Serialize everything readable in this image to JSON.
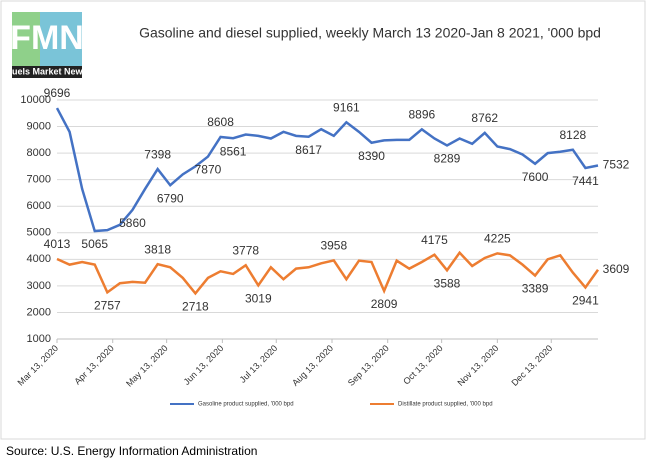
{
  "logo": {
    "mark": "FMN",
    "name": "Fuels Market News"
  },
  "chart_data": {
    "type": "line",
    "title": "Gasoline and diesel supplied, weekly March 13 2020-Jan 8 2021, '000 bpd",
    "x": [
      "2020-03-13",
      "2020-03-20",
      "2020-03-27",
      "2020-04-03",
      "2020-04-10",
      "2020-04-17",
      "2020-04-24",
      "2020-05-01",
      "2020-05-08",
      "2020-05-15",
      "2020-05-22",
      "2020-05-29",
      "2020-06-05",
      "2020-06-12",
      "2020-06-19",
      "2020-06-26",
      "2020-07-03",
      "2020-07-10",
      "2020-07-17",
      "2020-07-24",
      "2020-07-31",
      "2020-08-07",
      "2020-08-14",
      "2020-08-21",
      "2020-08-28",
      "2020-09-04",
      "2020-09-11",
      "2020-09-18",
      "2020-09-25",
      "2020-10-02",
      "2020-10-09",
      "2020-10-16",
      "2020-10-23",
      "2020-10-30",
      "2020-11-06",
      "2020-11-13",
      "2020-11-20",
      "2020-11-27",
      "2020-12-04",
      "2020-12-11",
      "2020-12-18",
      "2020-12-25",
      "2021-01-01",
      "2021-01-08"
    ],
    "series": [
      {
        "name": "Gasoline product supplied, '000 bpd",
        "color": "#4472c4",
        "values": [
          9696,
          8800,
          6650,
          5065,
          5100,
          5300,
          5860,
          6650,
          7398,
          6790,
          7200,
          7500,
          7870,
          8608,
          8561,
          8700,
          8650,
          8550,
          8800,
          8650,
          8617,
          8900,
          8650,
          9161,
          8800,
          8390,
          8480,
          8500,
          8500,
          8896,
          8550,
          8289,
          8550,
          8350,
          8762,
          8250,
          8150,
          7950,
          7600,
          8000,
          8050,
          8128,
          7441,
          7532
        ],
        "label_points": [
          0,
          3,
          6,
          8,
          9,
          12,
          13,
          14,
          20,
          23,
          25,
          29,
          31,
          34,
          38,
          41,
          42,
          43
        ]
      },
      {
        "name": "Distillate product supplied, '000 bpd",
        "color": "#ed7d31",
        "values": [
          4013,
          3800,
          3900,
          3800,
          2757,
          3100,
          3150,
          3120,
          3818,
          3700,
          3300,
          2718,
          3300,
          3550,
          3450,
          3778,
          3019,
          3700,
          3250,
          3650,
          3700,
          3850,
          3958,
          3250,
          3950,
          3900,
          2809,
          3950,
          3650,
          3900,
          4175,
          3588,
          4250,
          3750,
          4050,
          4225,
          4150,
          3800,
          3389,
          4000,
          4150,
          3500,
          2941,
          3609
        ],
        "label_points": [
          0,
          4,
          8,
          11,
          15,
          16,
          22,
          26,
          30,
          31,
          35,
          38,
          42,
          43
        ]
      }
    ],
    "xlim": [
      "2020-03-13",
      "2021-01-08"
    ],
    "xticks": [
      {
        "value": "2020-03-13",
        "label": "Mar 13, 2020"
      },
      {
        "value": "2020-04-13",
        "label": "Apr 13, 2020"
      },
      {
        "value": "2020-05-13",
        "label": "May 13, 2020"
      },
      {
        "value": "2020-06-13",
        "label": "Jun 13, 2020"
      },
      {
        "value": "2020-07-13",
        "label": "Jul 13, 2020"
      },
      {
        "value": "2020-08-13",
        "label": "Aug 13, 2020"
      },
      {
        "value": "2020-09-13",
        "label": "Sep 13, 2020"
      },
      {
        "value": "2020-10-13",
        "label": "Oct 13, 2020"
      },
      {
        "value": "2020-11-13",
        "label": "Nov 13, 2020"
      },
      {
        "value": "2020-12-13",
        "label": "Dec 13, 2020"
      }
    ],
    "ylim": [
      1000,
      10000
    ],
    "yticks": [
      1000,
      2000,
      3000,
      4000,
      5000,
      6000,
      7000,
      8000,
      9000,
      10000
    ],
    "grid": true,
    "legend": "bottom",
    "source": "Source: U.S. Energy Information Administration"
  }
}
